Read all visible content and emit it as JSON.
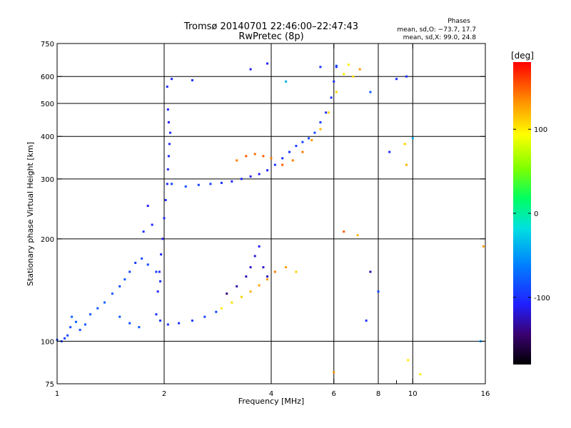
{
  "chart_data": {
    "type": "scatter",
    "title": "Tromsø 20140701 22:46:00–22:47:43",
    "subtitle": "RwPretec (8p)",
    "xlabel": "Frequency [MHz]",
    "ylabel": "Stationary phase Virtual Height [km]",
    "x_scale": "log",
    "y_scale": "log",
    "xlim": [
      1,
      16
    ],
    "ylim": [
      75,
      750
    ],
    "x_ticks": [
      1,
      2,
      4,
      6,
      8,
      10,
      16
    ],
    "x_minor_ticks": [
      9
    ],
    "y_ticks": [
      75,
      100,
      200,
      300,
      400,
      500,
      600,
      750
    ],
    "grid_x": [
      2,
      4,
      6,
      8,
      10
    ],
    "grid_y": [
      100,
      200,
      300,
      400,
      500,
      600
    ],
    "stats": {
      "heading": "Phases",
      "line1": "mean, sd,O: −73.7, 17.7",
      "line2": "mean, sd,X:  99.0, 24.8"
    },
    "colorbar": {
      "label": "[deg]",
      "range": [
        -180,
        180
      ],
      "ticks": [
        {
          "value": 100,
          "label": "100"
        },
        {
          "value": 0,
          "label": "0"
        },
        {
          "value": -100,
          "label": "-100"
        }
      ]
    },
    "series": [
      {
        "points": [
          [
            1.0,
            101,
            -90
          ],
          [
            1.03,
            100,
            -90
          ],
          [
            1.05,
            102,
            -95
          ],
          [
            1.07,
            104,
            -90
          ],
          [
            1.09,
            110,
            -85
          ],
          [
            1.1,
            118,
            -75
          ],
          [
            1.13,
            114,
            -80
          ],
          [
            1.16,
            108,
            -85
          ],
          [
            1.2,
            112,
            -80
          ],
          [
            1.24,
            120,
            -80
          ],
          [
            1.3,
            125,
            -80
          ],
          [
            1.36,
            130,
            -75
          ],
          [
            1.43,
            138,
            -80
          ],
          [
            1.5,
            145,
            -85
          ],
          [
            1.55,
            152,
            -80
          ],
          [
            1.6,
            160,
            -90
          ],
          [
            1.66,
            170,
            -95
          ],
          [
            1.73,
            175,
            -85
          ],
          [
            1.8,
            168,
            -90
          ],
          [
            1.9,
            160,
            -95
          ],
          [
            1.95,
            150,
            -100
          ]
        ]
      },
      {
        "points": [
          [
            1.95,
            115,
            -100
          ],
          [
            2.05,
            112,
            -95
          ],
          [
            2.2,
            113,
            -100
          ],
          [
            2.4,
            115,
            -95
          ],
          [
            2.6,
            118,
            -90
          ],
          [
            2.8,
            122,
            -90
          ],
          [
            1.7,
            110,
            -80
          ],
          [
            1.6,
            113,
            -85
          ],
          [
            1.5,
            118,
            -80
          ]
        ]
      },
      {
        "points": [
          [
            1.9,
            120,
            -100
          ],
          [
            1.92,
            140,
            -105
          ],
          [
            1.94,
            160,
            -100
          ],
          [
            1.96,
            180,
            -105
          ],
          [
            1.98,
            200,
            -110
          ],
          [
            2.0,
            230,
            -105
          ],
          [
            2.02,
            260,
            -100
          ],
          [
            2.04,
            290,
            -105
          ],
          [
            2.05,
            320,
            -100
          ],
          [
            2.06,
            350,
            -105
          ],
          [
            2.07,
            380,
            -100
          ],
          [
            2.08,
            410,
            -105
          ],
          [
            2.06,
            440,
            -110
          ],
          [
            2.05,
            480,
            -105
          ],
          [
            2.04,
            560,
            -100
          ],
          [
            1.85,
            220,
            -105
          ],
          [
            1.8,
            250,
            -110
          ],
          [
            1.75,
            210,
            -100
          ]
        ]
      },
      {
        "points": [
          [
            2.1,
            290,
            -90
          ],
          [
            2.3,
            285,
            -85
          ],
          [
            2.5,
            288,
            -90
          ],
          [
            2.7,
            290,
            -95
          ],
          [
            2.9,
            292,
            -100
          ],
          [
            3.1,
            295,
            -105
          ],
          [
            3.3,
            300,
            -105
          ],
          [
            3.5,
            305,
            -110
          ],
          [
            3.7,
            310,
            -110
          ],
          [
            3.9,
            318,
            -105
          ],
          [
            4.1,
            330,
            -100
          ],
          [
            4.3,
            345,
            -100
          ],
          [
            4.5,
            360,
            -100
          ],
          [
            4.7,
            375,
            -95
          ],
          [
            4.9,
            385,
            -90
          ],
          [
            5.1,
            395,
            -90
          ],
          [
            5.3,
            410,
            -90
          ],
          [
            5.5,
            440,
            -95
          ],
          [
            5.7,
            470,
            -100
          ],
          [
            5.9,
            520,
            -100
          ],
          [
            6.0,
            580,
            -100
          ],
          [
            6.1,
            640,
            -105
          ]
        ]
      },
      {
        "points": [
          [
            3.2,
            340,
            140
          ],
          [
            3.4,
            350,
            150
          ],
          [
            3.6,
            355,
            145
          ],
          [
            3.8,
            350,
            150
          ],
          [
            4.0,
            345,
            140
          ],
          [
            4.3,
            330,
            150
          ],
          [
            4.6,
            340,
            140
          ],
          [
            4.9,
            360,
            140
          ],
          [
            5.2,
            390,
            130
          ],
          [
            5.5,
            420,
            120
          ],
          [
            5.8,
            470,
            110
          ],
          [
            6.1,
            540,
            110
          ],
          [
            6.4,
            610,
            100
          ],
          [
            6.6,
            650,
            100
          ],
          [
            6.8,
            600,
            105
          ]
        ]
      },
      {
        "points": [
          [
            2.9,
            125,
            100
          ],
          [
            3.1,
            130,
            105
          ],
          [
            3.3,
            135,
            110
          ],
          [
            3.5,
            140,
            120
          ],
          [
            3.7,
            146,
            125
          ],
          [
            3.9,
            152,
            130
          ],
          [
            4.1,
            160,
            140
          ],
          [
            4.4,
            165,
            130
          ],
          [
            4.7,
            160,
            110
          ]
        ]
      },
      {
        "points": [
          [
            3.0,
            138,
            -140
          ],
          [
            3.2,
            145,
            -130
          ],
          [
            3.4,
            155,
            -125
          ],
          [
            3.5,
            165,
            -120
          ],
          [
            3.6,
            178,
            -115
          ],
          [
            3.7,
            190,
            -110
          ],
          [
            3.8,
            165,
            -120
          ],
          [
            3.9,
            155,
            -125
          ]
        ]
      },
      {
        "points": [
          [
            2.1,
            590,
            -105
          ],
          [
            2.4,
            585,
            -100
          ],
          [
            3.5,
            630,
            -110
          ],
          [
            3.9,
            655,
            -105
          ],
          [
            4.4,
            580,
            -40
          ],
          [
            5.5,
            640,
            -100
          ],
          [
            6.1,
            645,
            -90
          ],
          [
            7.1,
            630,
            130
          ],
          [
            9.0,
            590,
            -100
          ],
          [
            9.6,
            600,
            -100
          ],
          [
            7.6,
            540,
            -80
          ],
          [
            8.6,
            360,
            -100
          ],
          [
            9.6,
            330,
            120
          ],
          [
            10.5,
            80,
            100
          ],
          [
            15.5,
            100,
            -50
          ],
          [
            15.8,
            190,
            130
          ],
          [
            6.4,
            210,
            150
          ],
          [
            7.0,
            205,
            120
          ],
          [
            7.6,
            160,
            -130
          ],
          [
            8.0,
            140,
            -90
          ],
          [
            7.4,
            115,
            -100
          ],
          [
            6.0,
            81,
            130
          ],
          [
            9.7,
            88,
            100
          ],
          [
            9.5,
            380,
            110
          ],
          [
            10.0,
            395,
            -40
          ]
        ]
      }
    ]
  }
}
